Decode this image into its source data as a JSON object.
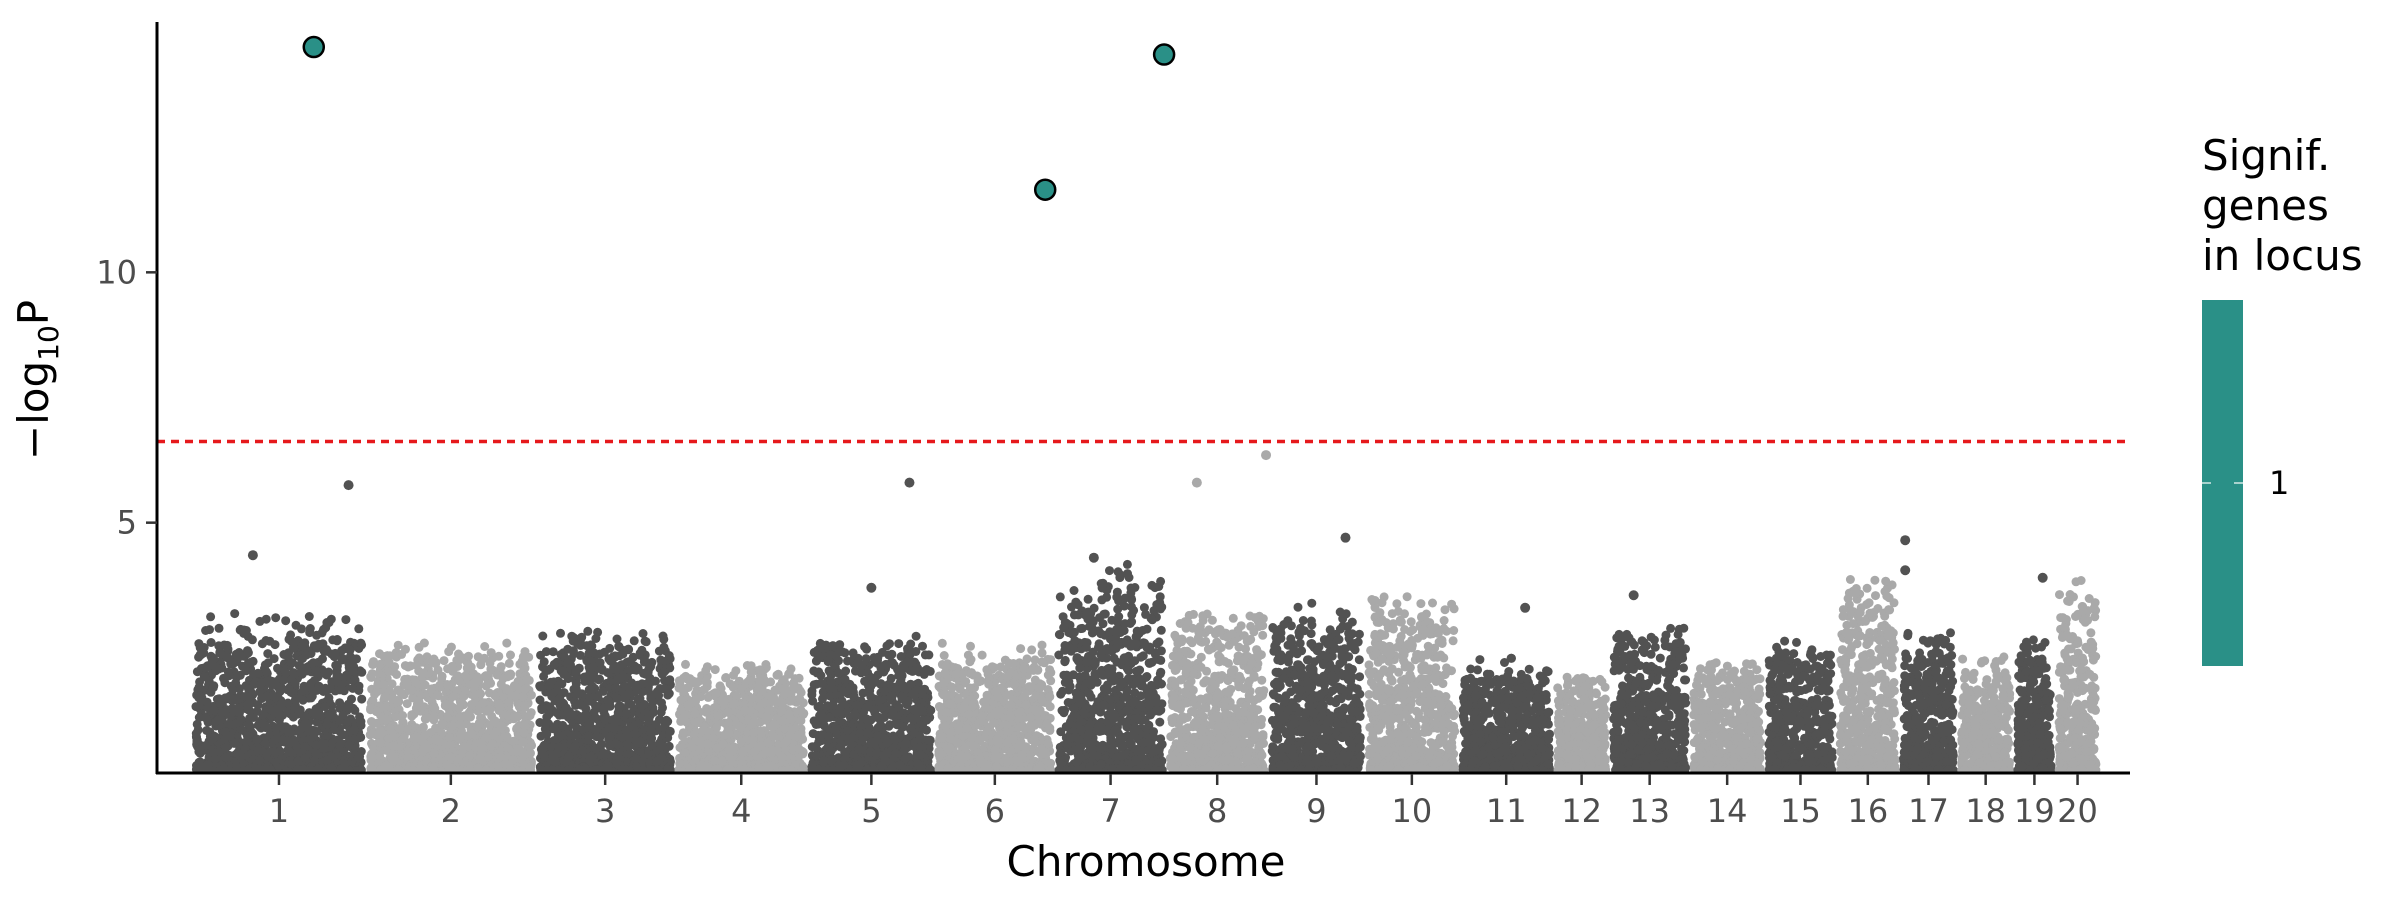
{
  "chart_data": {
    "type": "scatter",
    "xlabel": "Chromosome",
    "ylabel_main": "−log",
    "ylabel_sub": "10",
    "ylabel_tail": "P",
    "ylim": [
      0,
      15
    ],
    "y_ticks": [
      5,
      10
    ],
    "threshold": 6.62,
    "chromosomes": [
      {
        "label": "1",
        "length": 248,
        "peak": 3.2
      },
      {
        "label": "2",
        "length": 242,
        "peak": 2.6
      },
      {
        "label": "3",
        "length": 198,
        "peak": 2.9
      },
      {
        "label": "4",
        "length": 190,
        "peak": 2.2
      },
      {
        "label": "5",
        "length": 181,
        "peak": 2.8
      },
      {
        "label": "6",
        "length": 171,
        "peak": 2.6
      },
      {
        "label": "7",
        "length": 159,
        "peak": 4.2
      },
      {
        "label": "8",
        "length": 145,
        "peak": 3.4
      },
      {
        "label": "9",
        "length": 138,
        "peak": 3.4
      },
      {
        "label": "10",
        "length": 134,
        "peak": 3.6
      },
      {
        "label": "11",
        "length": 135,
        "peak": 2.3
      },
      {
        "label": "12",
        "length": 80,
        "peak": 2.0
      },
      {
        "label": "13",
        "length": 114,
        "peak": 3.0
      },
      {
        "label": "14",
        "length": 107,
        "peak": 2.3
      },
      {
        "label": "15",
        "length": 102,
        "peak": 2.7
      },
      {
        "label": "16",
        "length": 90,
        "peak": 4.0
      },
      {
        "label": "17",
        "length": 83,
        "peak": 2.9
      },
      {
        "label": "18",
        "length": 80,
        "peak": 2.3
      },
      {
        "label": "19",
        "length": 59,
        "peak": 2.8
      },
      {
        "label": "20",
        "length": 64,
        "peak": 3.9
      }
    ],
    "outliers": [
      {
        "chr": "1",
        "pos": 0.35,
        "y": 4.35
      },
      {
        "chr": "1",
        "pos": 0.9,
        "y": 5.75
      },
      {
        "chr": "5",
        "pos": 0.5,
        "y": 3.7
      },
      {
        "chr": "5",
        "pos": 0.8,
        "y": 5.8
      },
      {
        "chr": "7",
        "pos": 0.35,
        "y": 4.3
      },
      {
        "chr": "8",
        "pos": 0.3,
        "y": 5.8
      },
      {
        "chr": "8",
        "pos": 0.98,
        "y": 6.35
      },
      {
        "chr": "9",
        "pos": 0.8,
        "y": 4.7
      },
      {
        "chr": "11",
        "pos": 0.7,
        "y": 3.3
      },
      {
        "chr": "13",
        "pos": 0.3,
        "y": 3.55
      },
      {
        "chr": "16",
        "pos": 0.3,
        "y": 3.6
      },
      {
        "chr": "17",
        "pos": 0.1,
        "y": 4.65
      },
      {
        "chr": "17",
        "pos": 0.1,
        "y": 4.05
      },
      {
        "chr": "19",
        "pos": 0.7,
        "y": 3.9
      }
    ],
    "significant": [
      {
        "chr": "1",
        "pos": 0.7,
        "y": 14.5
      },
      {
        "chr": "6",
        "pos": 0.92,
        "y": 11.65
      },
      {
        "chr": "7",
        "pos": 0.98,
        "y": 14.35
      }
    ],
    "legend": {
      "title_lines": [
        "Signif.",
        "genes",
        "in locus"
      ],
      "label": "1",
      "color": "#2a9087"
    },
    "colors": {
      "dark": "#525252",
      "light": "#a9a9a9",
      "threshold": "#e6191c",
      "significant": "#2a9087"
    }
  }
}
